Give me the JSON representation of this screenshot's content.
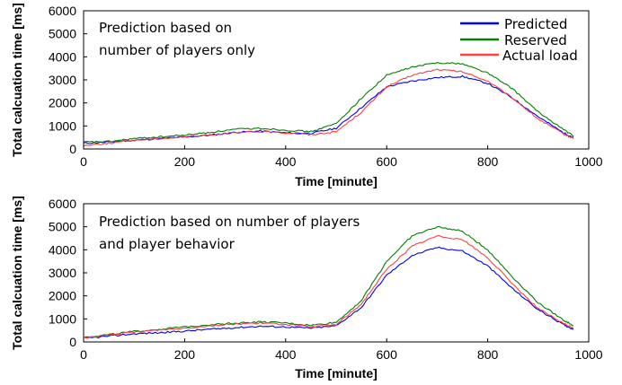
{
  "colors": {
    "predicted": "#0000ff",
    "reserved": "#008000",
    "actual": "#ff4040"
  },
  "chart_data": [
    {
      "type": "line",
      "xlabel": "Time [minute]",
      "ylabel": "Total calcuation time [ms]",
      "xlim": [
        0,
        1000
      ],
      "ylim": [
        0,
        6000
      ],
      "x_ticks": [
        "0",
        "200",
        "400",
        "600",
        "800",
        "1000"
      ],
      "y_ticks": [
        "0",
        "1000",
        "2000",
        "3000",
        "4000",
        "5000",
        "6000"
      ],
      "annotation_lines": [
        "Prediction based on",
        "number of players only"
      ],
      "legend_position": "top-right",
      "x": [
        0,
        50,
        100,
        150,
        200,
        250,
        300,
        350,
        400,
        450,
        500,
        550,
        600,
        650,
        700,
        750,
        800,
        850,
        900,
        950,
        970
      ],
      "series": [
        {
          "name": "Predicted",
          "color": "blue",
          "values": [
            250,
            300,
            380,
            450,
            520,
            600,
            720,
            780,
            700,
            680,
            900,
            1800,
            2700,
            2950,
            3100,
            3150,
            2850,
            2200,
            1400,
            700,
            500
          ]
        },
        {
          "name": "Reserved",
          "color": "green",
          "values": [
            300,
            320,
            450,
            520,
            600,
            720,
            850,
            900,
            820,
            750,
            1100,
            2200,
            3200,
            3550,
            3750,
            3700,
            3300,
            2600,
            1600,
            850,
            550
          ]
        },
        {
          "name": "Actual load",
          "color": "red",
          "values": [
            150,
            250,
            380,
            450,
            520,
            620,
            700,
            750,
            700,
            620,
            750,
            1600,
            2700,
            3200,
            3450,
            3350,
            2950,
            2200,
            1300,
            650,
            450
          ]
        }
      ]
    },
    {
      "type": "line",
      "xlabel": "Time [minute]",
      "ylabel": "Total calcuation time [ms]",
      "xlim": [
        0,
        1000
      ],
      "ylim": [
        0,
        6000
      ],
      "x_ticks": [
        "0",
        "200",
        "400",
        "600",
        "800",
        "1000"
      ],
      "y_ticks": [
        "0",
        "1000",
        "2000",
        "3000",
        "4000",
        "5000",
        "6000"
      ],
      "annotation_lines": [
        "Prediction based on number of players",
        "and player behavior"
      ],
      "x": [
        0,
        50,
        100,
        150,
        200,
        250,
        300,
        350,
        400,
        450,
        500,
        550,
        600,
        650,
        700,
        750,
        800,
        850,
        900,
        950,
        970
      ],
      "series": [
        {
          "name": "Predicted",
          "color": "blue",
          "values": [
            150,
            250,
            350,
            400,
            470,
            550,
            620,
            680,
            650,
            600,
            700,
            1500,
            2900,
            3750,
            4100,
            3950,
            3300,
            2300,
            1400,
            750,
            550
          ]
        },
        {
          "name": "Reserved",
          "color": "green",
          "values": [
            200,
            320,
            450,
            550,
            650,
            750,
            820,
            870,
            820,
            720,
            850,
            1800,
            3500,
            4600,
            5000,
            4800,
            4000,
            2800,
            1700,
            950,
            700
          ]
        },
        {
          "name": "Actual load",
          "color": "red",
          "values": [
            170,
            300,
            420,
            520,
            600,
            700,
            780,
            820,
            760,
            650,
            750,
            1650,
            3150,
            4150,
            4600,
            4450,
            3650,
            2500,
            1450,
            800,
            600
          ]
        }
      ]
    }
  ]
}
